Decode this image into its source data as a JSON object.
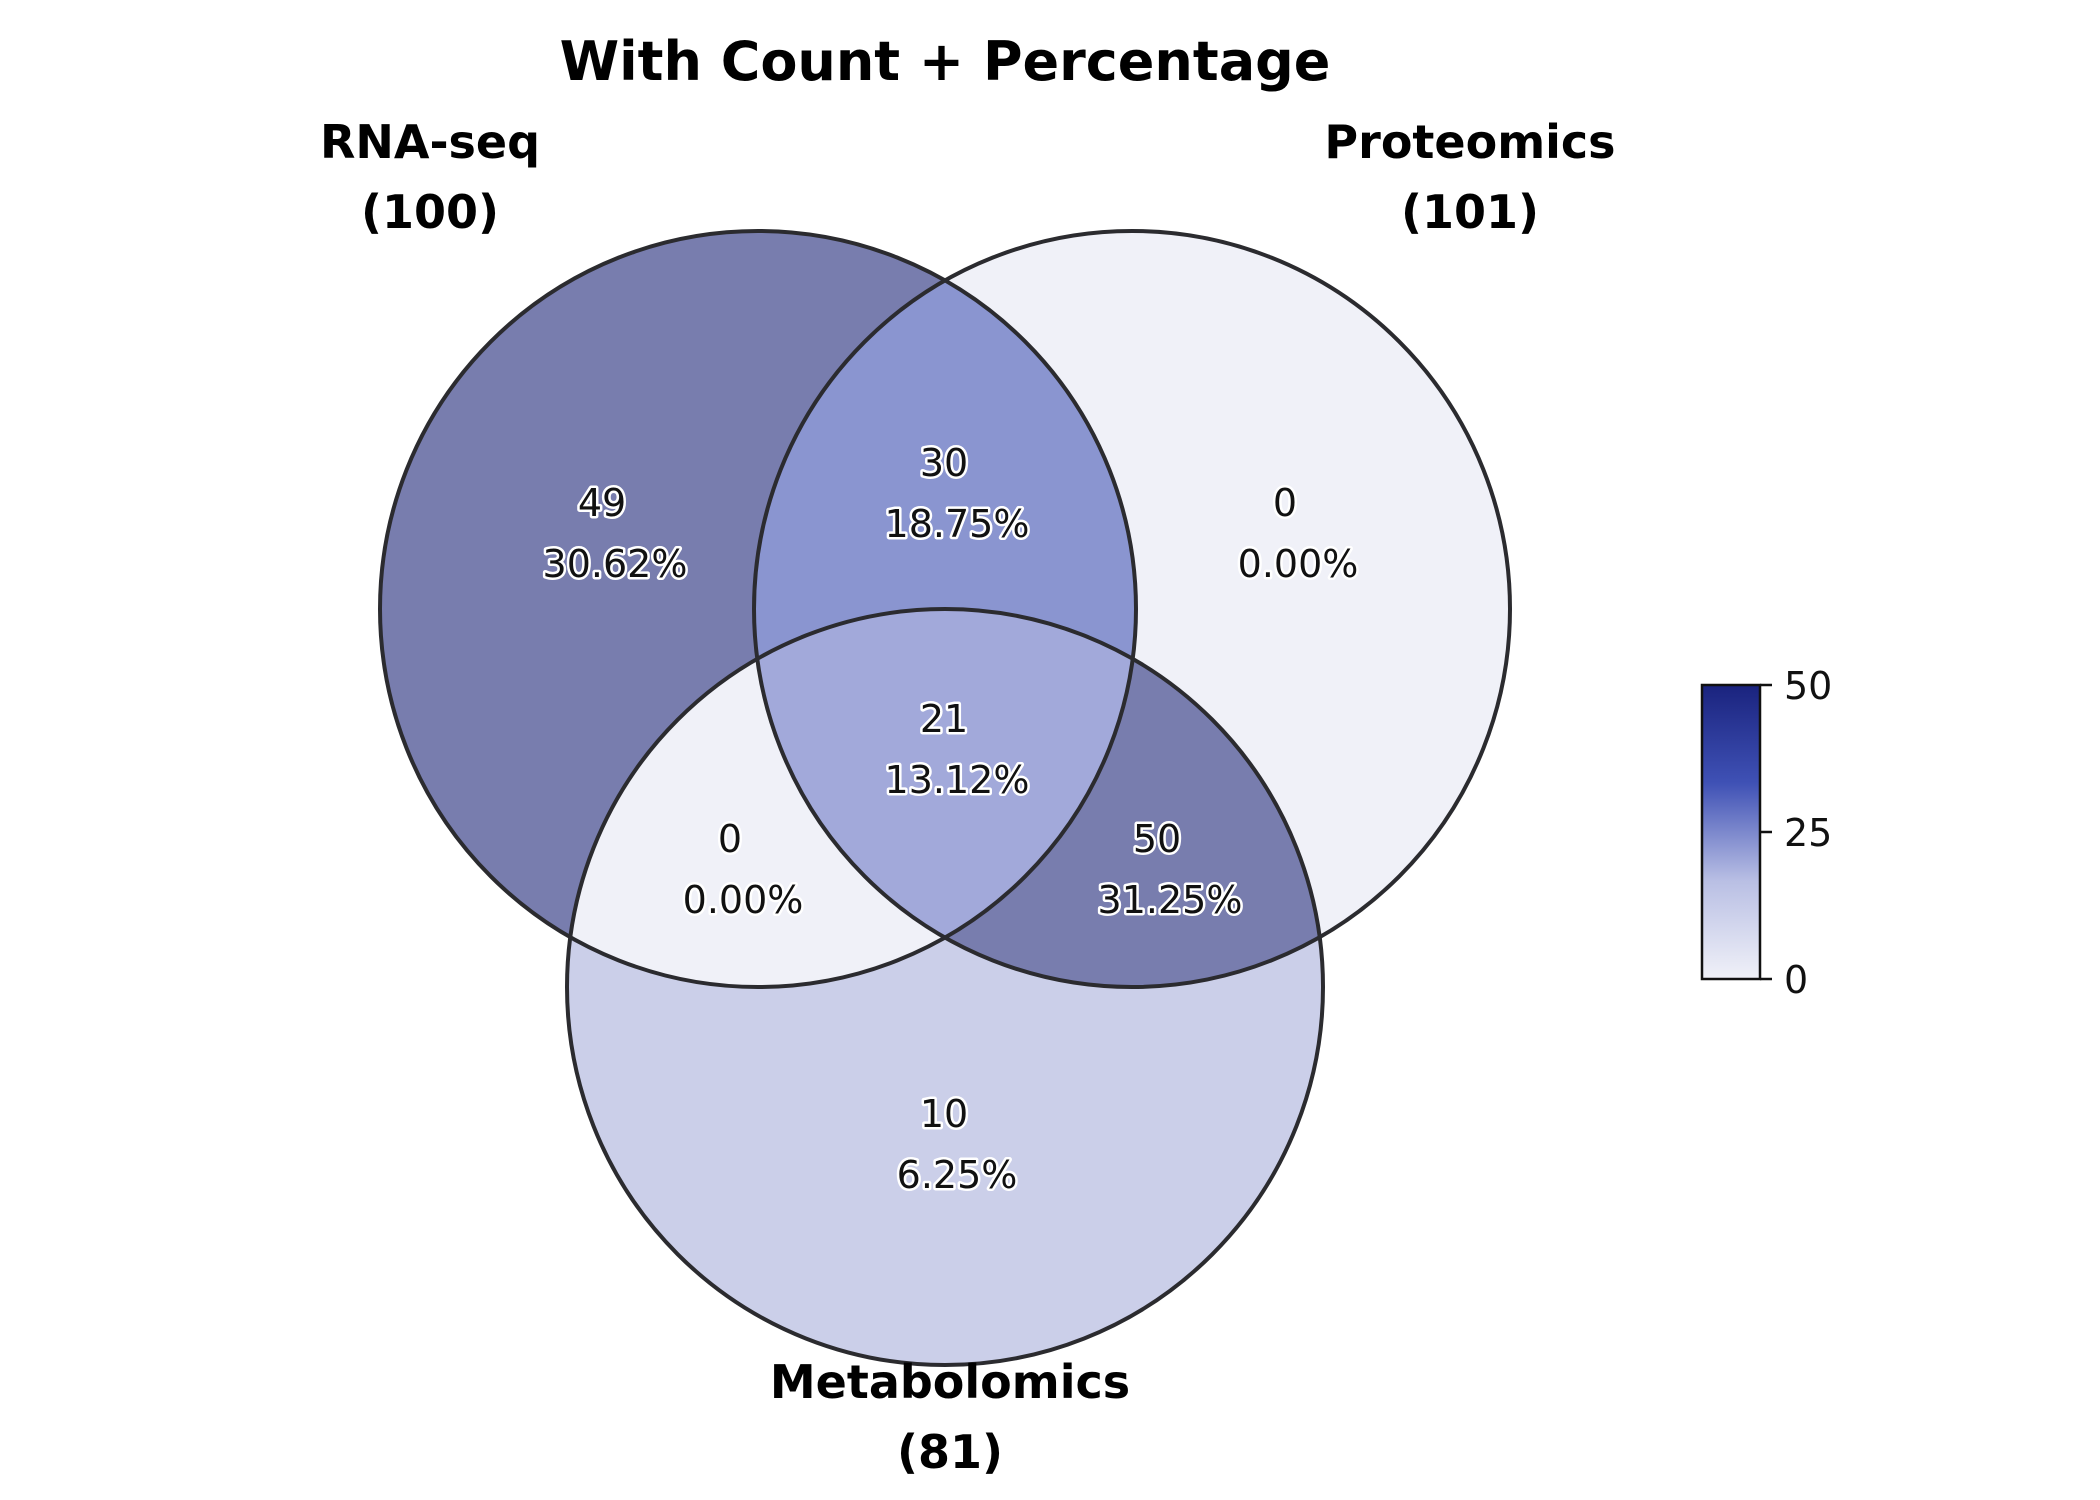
{
  "chart_data": {
    "type": "venn",
    "title": "With Count + Percentage",
    "sets": [
      {
        "name": "RNA-seq",
        "size_label": "(100)",
        "total": 100
      },
      {
        "name": "Proteomics",
        "size_label": "(101)",
        "total": 101
      },
      {
        "name": "Metabolomics",
        "size_label": "(81)",
        "total": 81
      }
    ],
    "regions": [
      {
        "sets": [
          "RNA-seq"
        ],
        "count": "49",
        "percent": "30.62%",
        "value": 49,
        "fill": "#787dae"
      },
      {
        "sets": [
          "Proteomics"
        ],
        "count": "0",
        "percent": "0.00%",
        "value": 0,
        "fill": "#f0f1f8"
      },
      {
        "sets": [
          "Metabolomics"
        ],
        "count": "10",
        "percent": "6.25%",
        "value": 10,
        "fill": "#cbcfe9"
      },
      {
        "sets": [
          "RNA-seq",
          "Proteomics"
        ],
        "count": "30",
        "percent": "18.75%",
        "value": 30,
        "fill": "#8a95d0"
      },
      {
        "sets": [
          "RNA-seq",
          "Metabolomics"
        ],
        "count": "0",
        "percent": "0.00%",
        "value": 0,
        "fill": "#f0f1f8"
      },
      {
        "sets": [
          "Proteomics",
          "Metabolomics"
        ],
        "count": "50",
        "percent": "31.25%",
        "value": 50,
        "fill": "#787dae"
      },
      {
        "sets": [
          "RNA-seq",
          "Proteomics",
          "Metabolomics"
        ],
        "count": "21",
        "percent": "13.12%",
        "value": 21,
        "fill": "#a2a9da"
      }
    ],
    "colorbar": {
      "min": 0,
      "max": 50,
      "ticks": [
        "0",
        "25",
        "50"
      ],
      "tick_values": [
        0,
        25,
        50
      ],
      "colors": [
        "#f0f1f8",
        "#b9bfe4",
        "#3f51b5",
        "#1a237e"
      ]
    }
  }
}
